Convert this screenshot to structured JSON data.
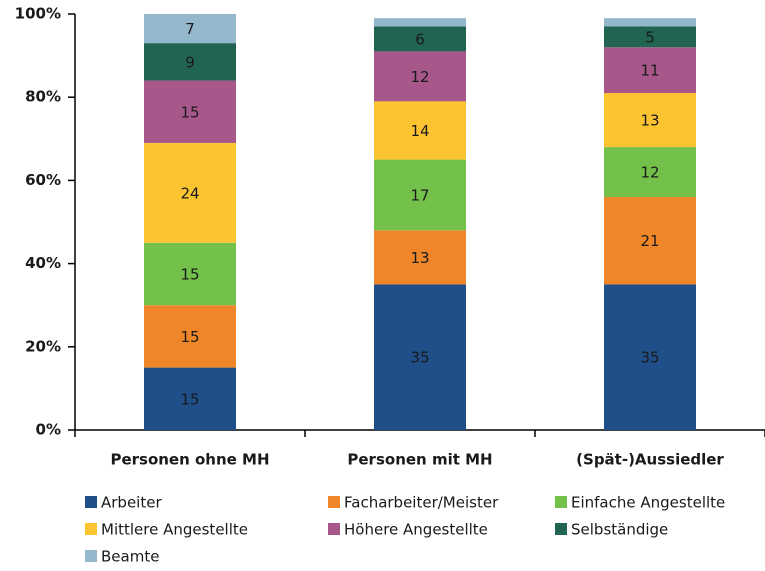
{
  "chart_data": {
    "type": "stacked-bar",
    "categories": [
      "Personen ohne MH",
      "Personen mit MH",
      "(Spät-)Aussiedler"
    ],
    "series": [
      {
        "name": "Arbeiter",
        "color": "#1f4e89",
        "label_color": "#ffffff",
        "values": [
          15,
          35,
          35
        ]
      },
      {
        "name": "Facharbeiter/Meister",
        "color": "#f0862a",
        "label_color": "#1a1a1a",
        "values": [
          15,
          13,
          21
        ]
      },
      {
        "name": "Einfache Angestellte",
        "color": "#73c04a",
        "label_color": "#ffffff",
        "values": [
          15,
          17,
          12
        ]
      },
      {
        "name": "Mittlere Angestellte",
        "color": "#fdc432",
        "label_color": "#1a1a1a",
        "values": [
          24,
          14,
          13
        ]
      },
      {
        "name": "Höhere Angestellte",
        "color": "#a8578b",
        "label_color": "#ffffff",
        "values": [
          15,
          12,
          11
        ]
      },
      {
        "name": "Selbständige",
        "color": "#226452",
        "label_color": "#ffffff",
        "values": [
          9,
          6,
          5
        ]
      },
      {
        "name": "Beamte",
        "color": "#94b7cc",
        "label_color": "#ffffff",
        "values": [
          7,
          2,
          2
        ]
      }
    ],
    "ylim": [
      0,
      100
    ],
    "yticks": [
      {
        "value": 0,
        "label": "0%"
      },
      {
        "value": 20,
        "label": "20%"
      },
      {
        "value": 40,
        "label": "40%"
      },
      {
        "value": 60,
        "label": "60%"
      },
      {
        "value": 80,
        "label": "80%"
      },
      {
        "value": 100,
        "label": "100%"
      }
    ],
    "grid": false
  }
}
